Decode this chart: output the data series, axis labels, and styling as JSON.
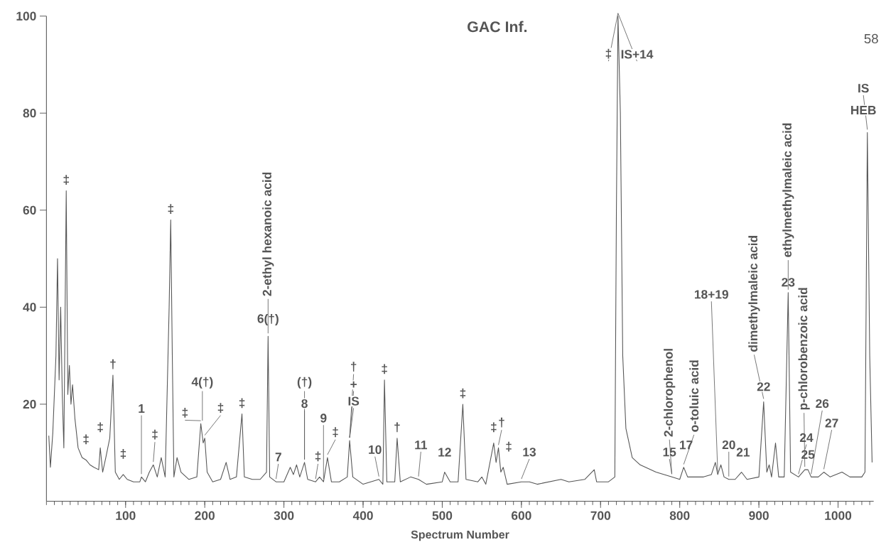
{
  "chart_data": {
    "type": "line",
    "title": "GAC Inf.",
    "xlabel": "Spectrum Number",
    "color": "#555555",
    "x": [
      3,
      5,
      8,
      12,
      14,
      16,
      18,
      20,
      22,
      25,
      27,
      29,
      31,
      33,
      36,
      40,
      45,
      50,
      55,
      60,
      66,
      68,
      71,
      75,
      80,
      84,
      87,
      92,
      97,
      102,
      110,
      118,
      120,
      125,
      130,
      135,
      140,
      145,
      150,
      155,
      157,
      159,
      161,
      165,
      170,
      180,
      190,
      195,
      198,
      200,
      203,
      210,
      220,
      227,
      232,
      240,
      247,
      250,
      260,
      270,
      278,
      280,
      282,
      290,
      300,
      308,
      312,
      316,
      320,
      326,
      330,
      340,
      345,
      350,
      355,
      360,
      370,
      380,
      383,
      387,
      400,
      410,
      420,
      425,
      427,
      430,
      440,
      443,
      447,
      460,
      470,
      480,
      500,
      503,
      510,
      520,
      526,
      530,
      545,
      550,
      555,
      565,
      568,
      571,
      574,
      577,
      582,
      600,
      610,
      620,
      650,
      660,
      680,
      692,
      695,
      710,
      718,
      720,
      722,
      725,
      728,
      732,
      740,
      750,
      770,
      790,
      800,
      805,
      810,
      830,
      840,
      845,
      848,
      852,
      856,
      862,
      870,
      878,
      885,
      900,
      906,
      910,
      913,
      916,
      921,
      925,
      932,
      937,
      940,
      950,
      958,
      962,
      966,
      975,
      982,
      990,
      1005,
      1015,
      1030,
      1034,
      1037,
      1040,
      1043
    ],
    "values": [
      13.5,
      7,
      14,
      30,
      50,
      25,
      40,
      22,
      11,
      64,
      22,
      28,
      20,
      24,
      17,
      11,
      9,
      8.5,
      7.5,
      7,
      6.5,
      11,
      6,
      9,
      13,
      26,
      6,
      4.5,
      5.5,
      4.5,
      4,
      4,
      5,
      4,
      6,
      7.5,
      5,
      9,
      5,
      40,
      58,
      30,
      5,
      9,
      6,
      4.5,
      5,
      16,
      12,
      13,
      6,
      4,
      4.5,
      8,
      4.5,
      5,
      18,
      5,
      4.5,
      4.5,
      6,
      34,
      5,
      4,
      4,
      7,
      5.5,
      7.5,
      5,
      8,
      4.5,
      4,
      5,
      4,
      9,
      4,
      4,
      5,
      12.5,
      5,
      3.5,
      4,
      4.5,
      3.5,
      25,
      4,
      4,
      13,
      4,
      5,
      4.5,
      3.5,
      4,
      6,
      4,
      4,
      20,
      4.5,
      4,
      5,
      3.5,
      12,
      8,
      11,
      6,
      7,
      3.5,
      4,
      4,
      3.5,
      4.5,
      4,
      4.5,
      6.5,
      4,
      4,
      5,
      60,
      100,
      80,
      30,
      15,
      9,
      7.5,
      6,
      5,
      4.5,
      7,
      5,
      5,
      5.5,
      8,
      5.5,
      7.5,
      5,
      4.5,
      4.5,
      6,
      4.5,
      5,
      20.5,
      6,
      7.5,
      5,
      12,
      5,
      5,
      43,
      6,
      5,
      6.5,
      6.5,
      5,
      5,
      6,
      5,
      6,
      5,
      5,
      6,
      76,
      30,
      8
    ],
    "xlim": [
      0,
      1045
    ],
    "ylim": [
      0,
      100
    ],
    "xticks": [
      100,
      200,
      300,
      400,
      500,
      600,
      700,
      800,
      900,
      1000
    ],
    "yticks": [
      20,
      40,
      60,
      80,
      100
    ],
    "annotations": [
      {
        "text": "‡",
        "x": 25,
        "y": 64
      },
      {
        "text": "‡",
        "x": 50,
        "y": 8.5
      },
      {
        "text": "‡",
        "x": 68,
        "y": 11
      },
      {
        "text": "†",
        "x": 84,
        "y": 26
      },
      {
        "text": "‡",
        "x": 97,
        "y": 5.5
      },
      {
        "text": "1",
        "x": 120,
        "y": 5
      },
      {
        "text": "‡",
        "x": 135,
        "y": 7.5
      },
      {
        "text": "‡",
        "x": 157,
        "y": 58
      },
      {
        "text": "‡",
        "x": 195,
        "y": 16
      },
      {
        "text": "4(†)",
        "x": 197,
        "y": 16
      },
      {
        "text": "‡",
        "x": 200,
        "y": 13
      },
      {
        "text": "‡",
        "x": 247,
        "y": 18
      },
      {
        "text": "6(†)",
        "x": 280,
        "y": 34
      },
      {
        "text": "2-ethyl hexanoic acid",
        "x": 280,
        "y": 34
      },
      {
        "text": "7",
        "x": 290,
        "y": 4
      },
      {
        "text": "(†)",
        "x": 326,
        "y": 8
      },
      {
        "text": "8",
        "x": 326,
        "y": 8
      },
      {
        "text": "‡",
        "x": 340,
        "y": 4
      },
      {
        "text": "9",
        "x": 350,
        "y": 4
      },
      {
        "text": "‡",
        "x": 355,
        "y": 9
      },
      {
        "text": "†",
        "x": 383,
        "y": 12.5
      },
      {
        "text": "+",
        "x": 383,
        "y": 12.5
      },
      {
        "text": "IS",
        "x": 383,
        "y": 12.5
      },
      {
        "text": "‡",
        "x": 427,
        "y": 25
      },
      {
        "text": "10",
        "x": 420,
        "y": 4.5
      },
      {
        "text": "†",
        "x": 443,
        "y": 13
      },
      {
        "text": "11",
        "x": 470,
        "y": 4.5
      },
      {
        "text": "12",
        "x": 503,
        "y": 6
      },
      {
        "text": "‡",
        "x": 526,
        "y": 20
      },
      {
        "text": "‡",
        "x": 565,
        "y": 12
      },
      {
        "text": "†",
        "x": 571,
        "y": 11
      },
      {
        "text": "‡",
        "x": 577,
        "y": 7
      },
      {
        "text": "13",
        "x": 600,
        "y": 4
      },
      {
        "text": "‡",
        "x": 722,
        "y": 100
      },
      {
        "text": "IS+14",
        "x": 722,
        "y": 100
      },
      {
        "text": "15",
        "x": 790,
        "y": 5
      },
      {
        "text": "2-chlorophenol",
        "x": 790,
        "y": 5
      },
      {
        "text": "17",
        "x": 805,
        "y": 7
      },
      {
        "text": "o-toluic acid",
        "x": 805,
        "y": 7
      },
      {
        "text": "18+19",
        "x": 848,
        "y": 5.5
      },
      {
        "text": "20",
        "x": 862,
        "y": 4.5
      },
      {
        "text": "21",
        "x": 878,
        "y": 6
      },
      {
        "text": "dimethylmaleic acid",
        "x": 906,
        "y": 20.5
      },
      {
        "text": "22",
        "x": 906,
        "y": 20.5
      },
      {
        "text": "23",
        "x": 937,
        "y": 43
      },
      {
        "text": "ethylmethylmaleic acid",
        "x": 937,
        "y": 43
      },
      {
        "text": "24",
        "x": 950,
        "y": 5
      },
      {
        "text": "25",
        "x": 962,
        "y": 6.5
      },
      {
        "text": "p-chlorobenzoic acid",
        "x": 958,
        "y": 6.5
      },
      {
        "text": "26",
        "x": 966,
        "y": 5
      },
      {
        "text": "27",
        "x": 982,
        "y": 6
      },
      {
        "text": "IS",
        "x": 1037,
        "y": 76
      },
      {
        "text": "HEB",
        "x": 1037,
        "y": 76
      },
      "58"
    ]
  }
}
